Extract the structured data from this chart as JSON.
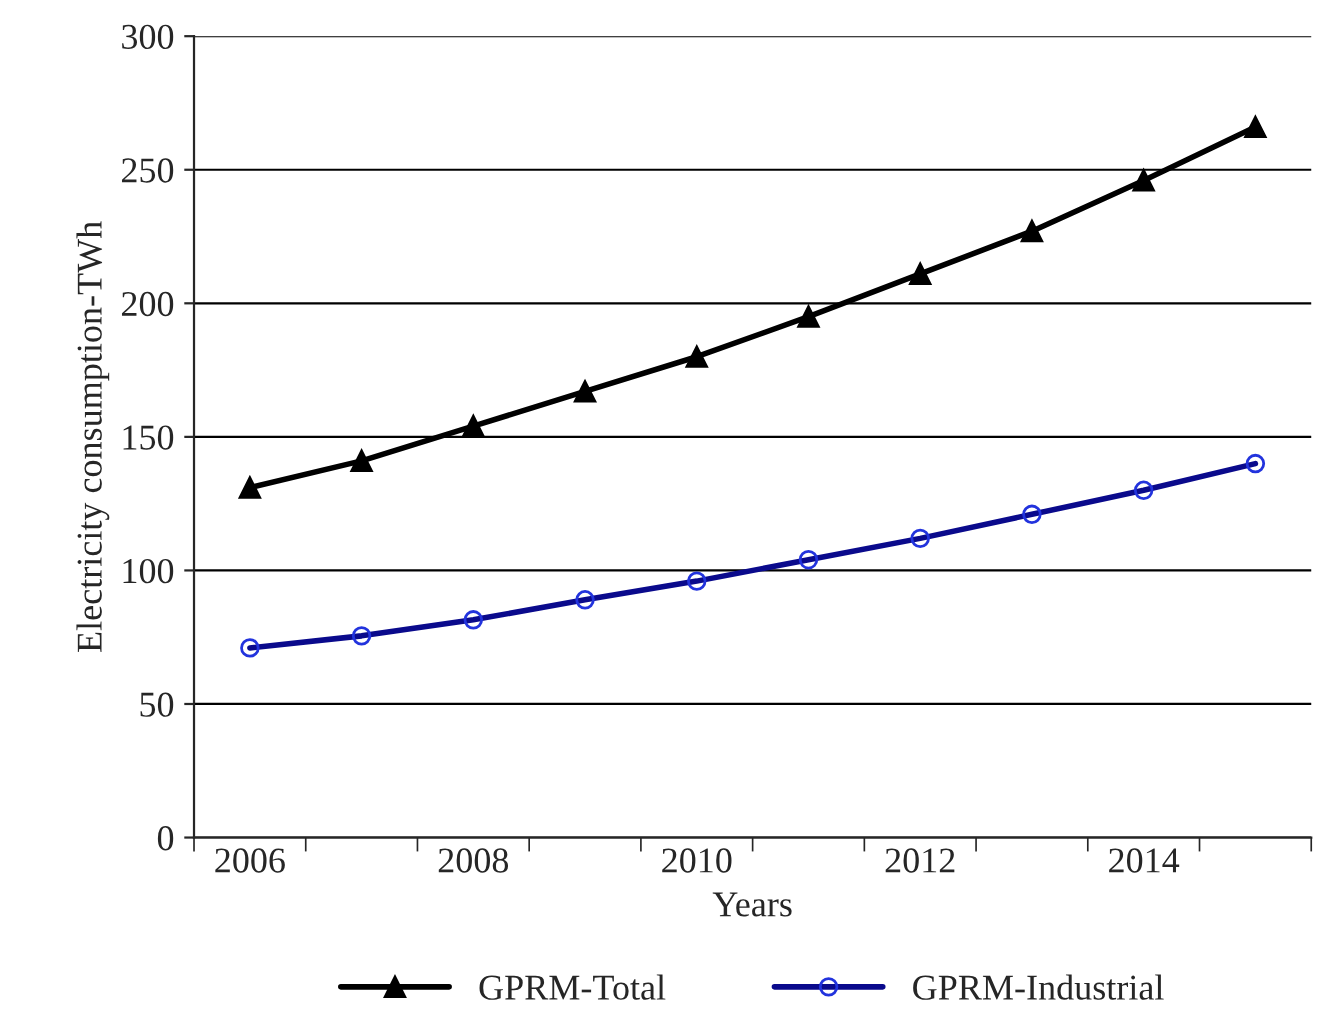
{
  "chart_data": {
    "type": "line",
    "xlabel": "Years",
    "ylabel": "Electricity consumption-TWh",
    "categories": [
      "2006",
      null,
      "2008",
      null,
      "2010",
      null,
      "2012",
      null,
      "2014",
      null
    ],
    "series": [
      {
        "name": "GPRM-Total",
        "color": "#000000",
        "marker": "triangle",
        "values": [
          131,
          141,
          154,
          167,
          180,
          195,
          211,
          227,
          246,
          266
        ]
      },
      {
        "name": "GPRM-Industrial",
        "color": "#0a0a8c",
        "marker": "circle",
        "values": [
          71,
          75.5,
          81.5,
          89,
          96,
          104,
          112,
          121,
          130,
          140
        ]
      }
    ],
    "ylim": [
      0,
      300
    ],
    "yticks": [
      0,
      50,
      100,
      150,
      200,
      250,
      300
    ],
    "grid": "y",
    "legend": "bottom",
    "line_style": "solid"
  }
}
